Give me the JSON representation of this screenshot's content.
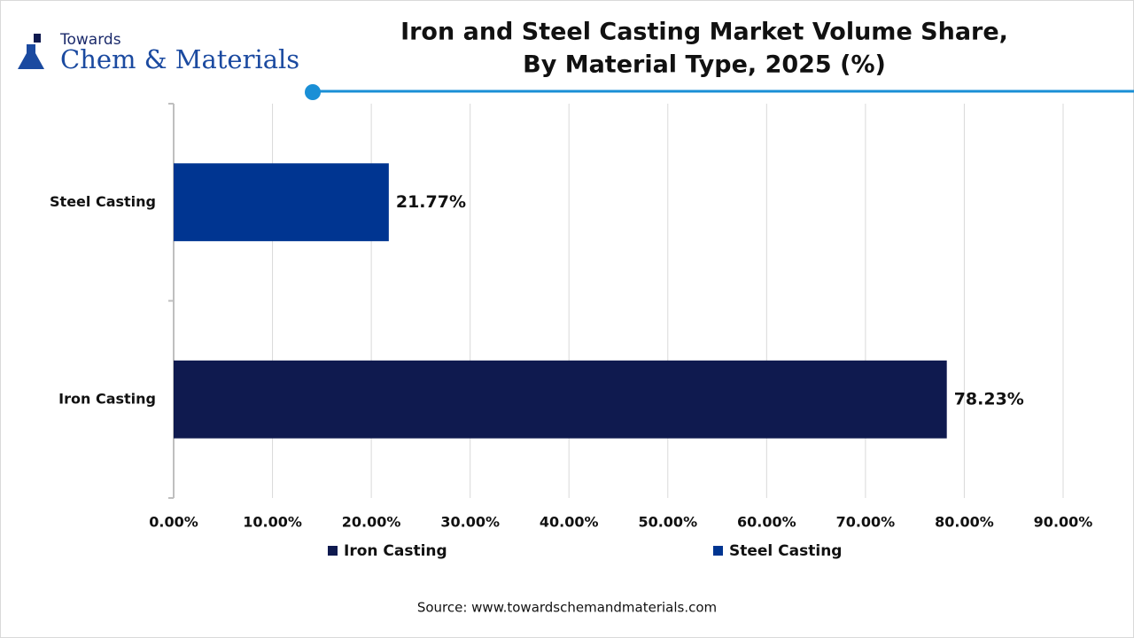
{
  "logo": {
    "top": "Towards",
    "name": "Chem & Materials"
  },
  "chart_data": {
    "type": "hbar",
    "title": [
      "Iron and Steel Casting Market Volume Share,",
      "By Material Type, 2025 (%)"
    ],
    "categories": [
      "Iron Casting",
      "Steel Casting"
    ],
    "series": [
      {
        "name": "Iron Casting",
        "color": "#0f1a4f",
        "values": [
          78.23,
          null
        ],
        "value_labels": [
          "78.23%",
          null
        ]
      },
      {
        "name": "Steel Casting",
        "color": "#003591",
        "values": [
          null,
          21.77
        ],
        "value_labels": [
          null,
          "21.77%"
        ]
      }
    ],
    "xlim": [
      0,
      90
    ],
    "xticks": [
      {
        "value": 0,
        "label": "0.00%"
      },
      {
        "value": 10,
        "label": "10.00%"
      },
      {
        "value": 20,
        "label": "20.00%"
      },
      {
        "value": 30,
        "label": "30.00%"
      },
      {
        "value": 40,
        "label": "40.00%"
      },
      {
        "value": 50,
        "label": "50.00%"
      },
      {
        "value": 60,
        "label": "60.00%"
      },
      {
        "value": 70,
        "label": "70.00%"
      },
      {
        "value": 80,
        "label": "80.00%"
      },
      {
        "value": 90,
        "label": "90.00%"
      }
    ],
    "grid": true,
    "legend": "bottom",
    "source": "Source: www.towardschemandmaterials.com"
  }
}
